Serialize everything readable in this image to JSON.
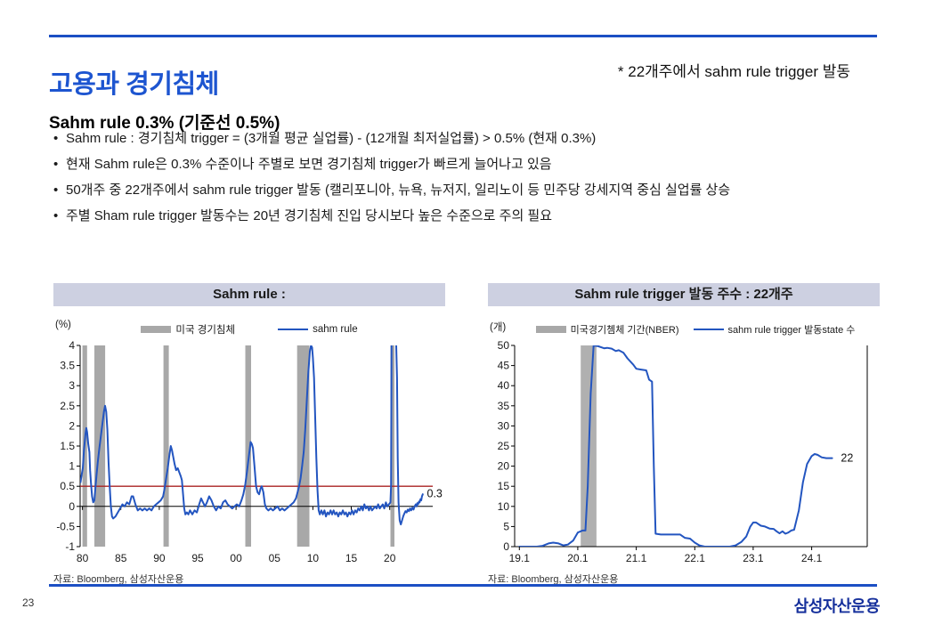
{
  "slide": {
    "title": "고용과 경기침체",
    "title_note": "* 22개주에서 sahm rule trigger 발동",
    "subtitle": "Sahm rule 0.3% (기준선 0.5%)",
    "bullets": [
      "Sahm rule : 경기침체 trigger = (3개월 평균 실업률) - (12개월 최저실업률) > 0.5%  (현재 0.3%)",
      "현재 Sahm rule은 0.3% 수준이나 주별로 보면 경기침체 trigger가 빠르게 늘어나고 있음",
      "50개주 중 22개주에서 sahm rule trigger 발동 (캘리포니아, 뉴욕, 뉴저지, 일리노이 등 민주당 강세지역 중심 실업률 상승",
      "주별 Sham rule trigger 발동수는 20년 경기침체 진입 당시보다 높은 수준으로 주의 필요"
    ],
    "page_number": "23",
    "logo_text": "삼성자산운용",
    "colors": {
      "accent": "#1c4fc4",
      "title": "#1d55d0",
      "logo": "#16309c"
    }
  },
  "chart_data": [
    {
      "id": "sahm-rule",
      "type": "line",
      "title": "Sahm rule :",
      "unit": "(%)",
      "legend_band_label": "미국 경기침체",
      "legend_line_label": "sahm rule",
      "source": "자료: Bloomberg, 삼성자산운용",
      "xlim": [
        1979.7,
        2025.6
      ],
      "ylim": [
        -1,
        4
      ],
      "x_ticks": [
        {
          "v": 1980,
          "label": "80"
        },
        {
          "v": 1985,
          "label": "85"
        },
        {
          "v": 1990,
          "label": "90"
        },
        {
          "v": 1995,
          "label": "95"
        },
        {
          "v": 2000,
          "label": "00"
        },
        {
          "v": 2005,
          "label": "05"
        },
        {
          "v": 2010,
          "label": "10"
        },
        {
          "v": 2015,
          "label": "15"
        },
        {
          "v": 2020,
          "label": "20"
        }
      ],
      "y_ticks": [
        4,
        3.5,
        3,
        2.5,
        2,
        1.5,
        1,
        0.5,
        0,
        -0.5,
        -1
      ],
      "axis_y": 0,
      "right_spine": false,
      "refline": 0.5,
      "refline_color": "#aa2222",
      "band_color": "#a8a8a8",
      "line_color": "#2355c0",
      "bands": [
        [
          1980.0,
          1980.6
        ],
        [
          1981.55,
          1982.95
        ],
        [
          1990.55,
          1991.25
        ],
        [
          2001.2,
          2001.95
        ],
        [
          2007.95,
          2009.55
        ],
        [
          2020.1,
          2020.62
        ]
      ],
      "annotation": {
        "text": "0.3",
        "x": 2024.85,
        "y": 0.32
      },
      "series": [
        [
          1979.75,
          0.6
        ],
        [
          1979.9,
          0.78
        ],
        [
          1980.05,
          0.95
        ],
        [
          1980.2,
          1.4
        ],
        [
          1980.4,
          1.8
        ],
        [
          1980.5,
          1.95
        ],
        [
          1980.6,
          1.85
        ],
        [
          1980.75,
          1.55
        ],
        [
          1980.9,
          1.35
        ],
        [
          1981.0,
          0.9
        ],
        [
          1981.1,
          0.6
        ],
        [
          1981.25,
          0.25
        ],
        [
          1981.4,
          0.1
        ],
        [
          1981.55,
          0.15
        ],
        [
          1981.7,
          0.5
        ],
        [
          1981.85,
          0.8
        ],
        [
          1982.0,
          1.1
        ],
        [
          1982.2,
          1.45
        ],
        [
          1982.4,
          1.75
        ],
        [
          1982.6,
          2.05
        ],
        [
          1982.8,
          2.35
        ],
        [
          1982.95,
          2.5
        ],
        [
          1983.1,
          2.35
        ],
        [
          1983.25,
          1.9
        ],
        [
          1983.4,
          1.1
        ],
        [
          1983.55,
          0.5
        ],
        [
          1983.7,
          0.0
        ],
        [
          1983.85,
          -0.25
        ],
        [
          1984.0,
          -0.3
        ],
        [
          1984.3,
          -0.25
        ],
        [
          1984.6,
          -0.15
        ],
        [
          1984.9,
          -0.05
        ],
        [
          1985.2,
          0.05
        ],
        [
          1985.5,
          0.0
        ],
        [
          1985.8,
          0.1
        ],
        [
          1986.1,
          0.05
        ],
        [
          1986.4,
          0.25
        ],
        [
          1986.6,
          0.25
        ],
        [
          1986.9,
          0.05
        ],
        [
          1987.2,
          -0.1
        ],
        [
          1987.5,
          -0.05
        ],
        [
          1987.8,
          -0.1
        ],
        [
          1988.1,
          -0.05
        ],
        [
          1988.4,
          -0.1
        ],
        [
          1988.7,
          -0.05
        ],
        [
          1989.0,
          -0.1
        ],
        [
          1989.3,
          0.0
        ],
        [
          1989.6,
          0.05
        ],
        [
          1989.9,
          0.1
        ],
        [
          1990.2,
          0.15
        ],
        [
          1990.5,
          0.25
        ],
        [
          1990.7,
          0.45
        ],
        [
          1990.9,
          0.7
        ],
        [
          1991.1,
          0.95
        ],
        [
          1991.3,
          1.25
        ],
        [
          1991.5,
          1.5
        ],
        [
          1991.65,
          1.4
        ],
        [
          1991.8,
          1.25
        ],
        [
          1992.0,
          1.05
        ],
        [
          1992.2,
          0.9
        ],
        [
          1992.4,
          0.95
        ],
        [
          1992.6,
          0.85
        ],
        [
          1992.8,
          0.75
        ],
        [
          1992.95,
          0.65
        ],
        [
          1993.1,
          0.3
        ],
        [
          1993.25,
          -0.05
        ],
        [
          1993.4,
          -0.2
        ],
        [
          1993.6,
          -0.15
        ],
        [
          1993.8,
          -0.2
        ],
        [
          1994.0,
          -0.1
        ],
        [
          1994.3,
          -0.2
        ],
        [
          1994.6,
          -0.1
        ],
        [
          1994.9,
          -0.15
        ],
        [
          1995.2,
          0.05
        ],
        [
          1995.45,
          0.2
        ],
        [
          1995.7,
          0.1
        ],
        [
          1995.95,
          0.0
        ],
        [
          1996.2,
          0.1
        ],
        [
          1996.5,
          0.25
        ],
        [
          1996.8,
          0.15
        ],
        [
          1997.1,
          0.0
        ],
        [
          1997.4,
          -0.1
        ],
        [
          1997.7,
          0.0
        ],
        [
          1998.0,
          -0.05
        ],
        [
          1998.3,
          0.1
        ],
        [
          1998.6,
          0.15
        ],
        [
          1998.9,
          0.05
        ],
        [
          1999.2,
          0.0
        ],
        [
          1999.5,
          -0.05
        ],
        [
          1999.8,
          0.0
        ],
        [
          2000.1,
          0.05
        ],
        [
          2000.4,
          0.0
        ],
        [
          2000.7,
          0.15
        ],
        [
          2000.95,
          0.3
        ],
        [
          2001.2,
          0.55
        ],
        [
          2001.45,
          0.9
        ],
        [
          2001.7,
          1.3
        ],
        [
          2001.9,
          1.6
        ],
        [
          2002.05,
          1.55
        ],
        [
          2002.2,
          1.45
        ],
        [
          2002.4,
          1.0
        ],
        [
          2002.6,
          0.5
        ],
        [
          2002.8,
          0.35
        ],
        [
          2003.0,
          0.3
        ],
        [
          2003.2,
          0.45
        ],
        [
          2003.35,
          0.5
        ],
        [
          2003.55,
          0.35
        ],
        [
          2003.75,
          0.05
        ],
        [
          2003.95,
          -0.05
        ],
        [
          2004.2,
          -0.1
        ],
        [
          2004.5,
          -0.05
        ],
        [
          2004.8,
          -0.1
        ],
        [
          2005.1,
          -0.05
        ],
        [
          2005.4,
          0.0
        ],
        [
          2005.7,
          -0.1
        ],
        [
          2006.0,
          -0.05
        ],
        [
          2006.3,
          -0.1
        ],
        [
          2006.6,
          -0.05
        ],
        [
          2006.9,
          0.0
        ],
        [
          2007.2,
          0.05
        ],
        [
          2007.5,
          0.1
        ],
        [
          2007.8,
          0.2
        ],
        [
          2008.0,
          0.35
        ],
        [
          2008.2,
          0.5
        ],
        [
          2008.4,
          0.7
        ],
        [
          2008.6,
          1.0
        ],
        [
          2008.8,
          1.35
        ],
        [
          2009.0,
          1.9
        ],
        [
          2009.2,
          2.6
        ],
        [
          2009.4,
          3.3
        ],
        [
          2009.6,
          3.85
        ],
        [
          2009.75,
          4.0
        ],
        [
          2009.9,
          3.95
        ],
        [
          2010.0,
          3.7
        ],
        [
          2010.15,
          3.2
        ],
        [
          2010.3,
          2.2
        ],
        [
          2010.45,
          1.2
        ],
        [
          2010.6,
          0.4
        ],
        [
          2010.75,
          -0.1
        ],
        [
          2010.9,
          -0.2
        ],
        [
          2011.1,
          -0.1
        ],
        [
          2011.3,
          -0.2
        ],
        [
          2011.5,
          -0.1
        ],
        [
          2011.7,
          -0.25
        ],
        [
          2011.9,
          -0.15
        ],
        [
          2012.1,
          -0.2
        ],
        [
          2012.3,
          -0.1
        ],
        [
          2012.5,
          -0.2
        ],
        [
          2012.7,
          -0.1
        ],
        [
          2012.9,
          -0.2
        ],
        [
          2013.1,
          -0.15
        ],
        [
          2013.3,
          -0.25
        ],
        [
          2013.5,
          -0.15
        ],
        [
          2013.7,
          -0.2
        ],
        [
          2013.9,
          -0.1
        ],
        [
          2014.1,
          -0.2
        ],
        [
          2014.3,
          -0.15
        ],
        [
          2014.5,
          -0.25
        ],
        [
          2014.7,
          -0.15
        ],
        [
          2014.9,
          -0.2
        ],
        [
          2015.1,
          -0.1
        ],
        [
          2015.3,
          -0.2
        ],
        [
          2015.5,
          -0.1
        ],
        [
          2015.7,
          -0.15
        ],
        [
          2015.9,
          -0.05
        ],
        [
          2016.1,
          -0.1
        ],
        [
          2016.3,
          0.0
        ],
        [
          2016.5,
          -0.1
        ],
        [
          2016.7,
          0.05
        ],
        [
          2016.9,
          -0.05
        ],
        [
          2017.1,
          0.0
        ],
        [
          2017.3,
          -0.1
        ],
        [
          2017.5,
          0.0
        ],
        [
          2017.7,
          -0.1
        ],
        [
          2017.9,
          -0.05
        ],
        [
          2018.1,
          0.0
        ],
        [
          2018.3,
          -0.05
        ],
        [
          2018.5,
          0.05
        ],
        [
          2018.7,
          -0.05
        ],
        [
          2018.9,
          0.0
        ],
        [
          2019.1,
          0.05
        ],
        [
          2019.3,
          -0.05
        ],
        [
          2019.5,
          0.1
        ],
        [
          2019.7,
          0.0
        ],
        [
          2019.9,
          0.05
        ],
        [
          2020.1,
          0.1
        ],
        [
          2020.18,
          0.5
        ],
        [
          2020.24,
          4.3
        ],
        [
          2020.8,
          4.35
        ],
        [
          2020.95,
          3.2
        ],
        [
          2021.05,
          1.2
        ],
        [
          2021.15,
          0.1
        ],
        [
          2021.3,
          -0.35
        ],
        [
          2021.45,
          -0.45
        ],
        [
          2021.6,
          -0.35
        ],
        [
          2021.75,
          -0.25
        ],
        [
          2021.9,
          -0.18
        ],
        [
          2022.05,
          -0.12
        ],
        [
          2022.2,
          -0.15
        ],
        [
          2022.35,
          -0.08
        ],
        [
          2022.5,
          -0.12
        ],
        [
          2022.65,
          -0.05
        ],
        [
          2022.8,
          -0.1
        ],
        [
          2022.95,
          -0.03
        ],
        [
          2023.1,
          -0.08
        ],
        [
          2023.25,
          0.0
        ],
        [
          2023.4,
          0.05
        ],
        [
          2023.5,
          0.0
        ],
        [
          2023.6,
          0.08
        ],
        [
          2023.7,
          0.05
        ],
        [
          2023.8,
          0.12
        ],
        [
          2023.9,
          0.1
        ],
        [
          2024.0,
          0.18
        ],
        [
          2024.1,
          0.15
        ],
        [
          2024.2,
          0.25
        ],
        [
          2024.3,
          0.3
        ]
      ]
    },
    {
      "id": "trigger-states",
      "type": "line",
      "title": "Sahm rule trigger 발동 주수 : 22개주",
      "unit": "(개)",
      "legend_band_label": "미국경기쳄체 기간(NBER)",
      "legend_line_label": "sahm rule trigger 발동state 수",
      "source": "자료: Bloomberg, 삼성자산운용",
      "xlim": [
        2018.92,
        2024.95
      ],
      "ylim": [
        0,
        50
      ],
      "x_ticks": [
        {
          "v": 2019,
          "label": "19.1"
        },
        {
          "v": 2020,
          "label": "20.1"
        },
        {
          "v": 2021,
          "label": "21.1"
        },
        {
          "v": 2022,
          "label": "22.1"
        },
        {
          "v": 2023,
          "label": "23.1"
        },
        {
          "v": 2024,
          "label": "24.1"
        }
      ],
      "y_ticks": [
        50,
        45,
        40,
        35,
        30,
        25,
        20,
        15,
        10,
        5,
        0
      ],
      "axis_y": 0,
      "right_spine": true,
      "refline": null,
      "refline_color": "#aa2222",
      "band_color": "#b0b0b0",
      "line_color": "#2355c0",
      "bands": [
        [
          2020.05,
          2020.32
        ]
      ],
      "annotation": {
        "text": "22",
        "x": 2024.5,
        "y": 22
      },
      "series": [
        [
          2019.0,
          0
        ],
        [
          2019.1,
          0
        ],
        [
          2019.2,
          0
        ],
        [
          2019.3,
          0
        ],
        [
          2019.4,
          0.2
        ],
        [
          2019.5,
          0.8
        ],
        [
          2019.58,
          1
        ],
        [
          2019.67,
          0.8
        ],
        [
          2019.75,
          0.3
        ],
        [
          2019.83,
          0.5
        ],
        [
          2019.92,
          1.5
        ],
        [
          2020.0,
          3.5
        ],
        [
          2020.08,
          4
        ],
        [
          2020.13,
          4
        ],
        [
          2020.17,
          15
        ],
        [
          2020.22,
          38
        ],
        [
          2020.27,
          50
        ],
        [
          2020.35,
          49.8
        ],
        [
          2020.45,
          49.3
        ],
        [
          2020.5,
          49.4
        ],
        [
          2020.58,
          49.2
        ],
        [
          2020.65,
          48.6
        ],
        [
          2020.7,
          48.8
        ],
        [
          2020.78,
          48.2
        ],
        [
          2020.85,
          46.8
        ],
        [
          2020.95,
          45.2
        ],
        [
          2021.0,
          44.2
        ],
        [
          2021.08,
          44
        ],
        [
          2021.17,
          43.8
        ],
        [
          2021.22,
          41.5
        ],
        [
          2021.27,
          41
        ],
        [
          2021.3,
          20
        ],
        [
          2021.33,
          3.2
        ],
        [
          2021.42,
          3
        ],
        [
          2021.5,
          3
        ],
        [
          2021.58,
          3
        ],
        [
          2021.67,
          3
        ],
        [
          2021.75,
          3
        ],
        [
          2021.83,
          2.2
        ],
        [
          2021.92,
          2
        ],
        [
          2022.0,
          1
        ],
        [
          2022.08,
          0.3
        ],
        [
          2022.17,
          0
        ],
        [
          2022.3,
          0
        ],
        [
          2022.45,
          0
        ],
        [
          2022.6,
          0
        ],
        [
          2022.7,
          0.3
        ],
        [
          2022.8,
          1.2
        ],
        [
          2022.88,
          2.5
        ],
        [
          2022.95,
          5
        ],
        [
          2023.0,
          6
        ],
        [
          2023.05,
          6
        ],
        [
          2023.13,
          5.2
        ],
        [
          2023.2,
          5
        ],
        [
          2023.28,
          4.5
        ],
        [
          2023.35,
          4.4
        ],
        [
          2023.4,
          3.8
        ],
        [
          2023.45,
          3.3
        ],
        [
          2023.5,
          3.8
        ],
        [
          2023.55,
          3.2
        ],
        [
          2023.6,
          3.5
        ],
        [
          2023.65,
          4
        ],
        [
          2023.7,
          4.2
        ],
        [
          2023.78,
          9
        ],
        [
          2023.85,
          16
        ],
        [
          2023.92,
          20.5
        ],
        [
          2024.0,
          22.5
        ],
        [
          2024.05,
          23
        ],
        [
          2024.1,
          22.8
        ],
        [
          2024.17,
          22.2
        ],
        [
          2024.25,
          22
        ],
        [
          2024.35,
          22
        ]
      ]
    }
  ]
}
